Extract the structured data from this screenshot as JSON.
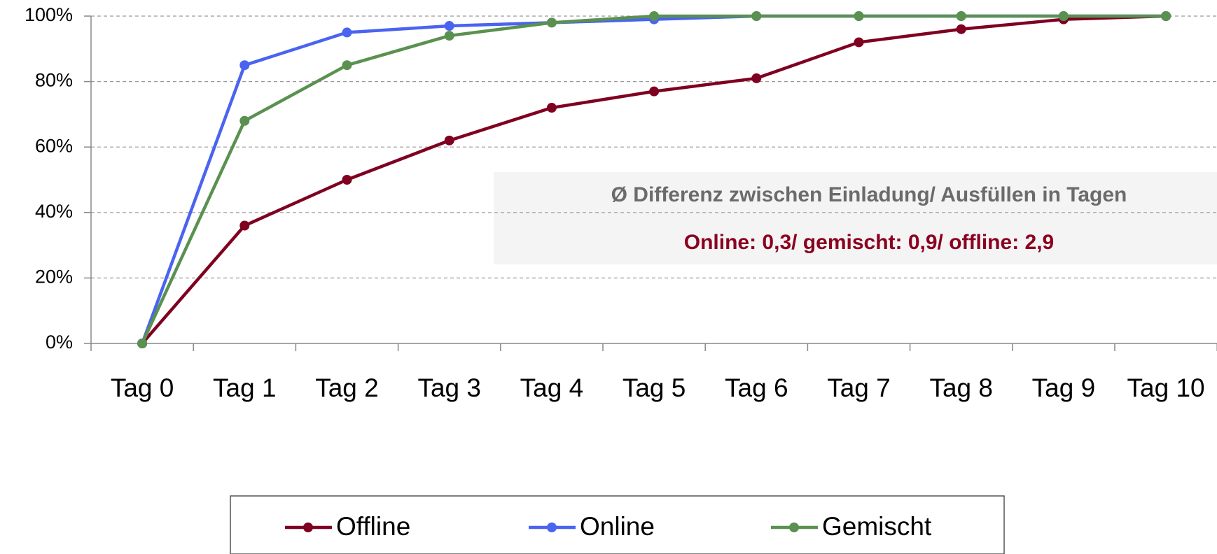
{
  "chart_data": {
    "type": "line",
    "categories": [
      "Tag 0",
      "Tag 1",
      "Tag 2",
      "Tag 3",
      "Tag 4",
      "Tag 5",
      "Tag 6",
      "Tag 7",
      "Tag 8",
      "Tag 9",
      "Tag 10"
    ],
    "series": [
      {
        "name": "Offline",
        "color": "#7f0020",
        "values": [
          0,
          36,
          50,
          62,
          72,
          77,
          81,
          92,
          96,
          99,
          100
        ]
      },
      {
        "name": "Online",
        "color": "#4a63f0",
        "values": [
          0,
          85,
          95,
          97,
          98,
          99,
          100,
          100,
          100,
          100,
          100
        ]
      },
      {
        "name": "Gemischt",
        "color": "#5a9150",
        "values": [
          0,
          68,
          85,
          94,
          98,
          100,
          100,
          100,
          100,
          100,
          100
        ]
      }
    ],
    "ylim": [
      0,
      100
    ],
    "yticks": [
      {
        "value": 0,
        "label": "0%"
      },
      {
        "value": 20,
        "label": "20%"
      },
      {
        "value": 40,
        "label": "40%"
      },
      {
        "value": 60,
        "label": "60%"
      },
      {
        "value": 80,
        "label": "80%"
      },
      {
        "value": 100,
        "label": "100%"
      }
    ],
    "grid": true,
    "annotations": [
      "Ø Differenz zwischen Einladung/ Ausfüllen in Tagen",
      "Online: 0,3/ gemischt: 0,9/ offline: 2,9"
    ],
    "legend": "bottom"
  }
}
